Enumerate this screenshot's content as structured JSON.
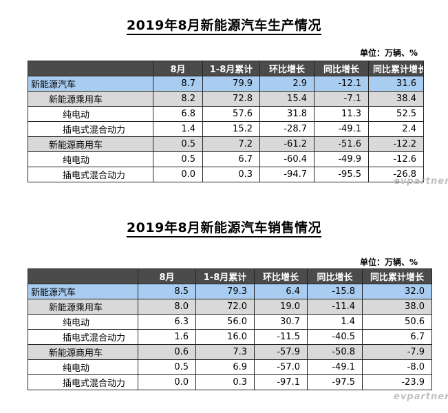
{
  "production": {
    "title": "2019年8月新能源汽车生产情况",
    "unit": "单位：万辆、%",
    "headers": [
      "8月",
      "1-8月累计",
      "环比增长",
      "同比增长",
      "同比累计增长"
    ],
    "rows": [
      {
        "label": "新能源汽车",
        "level": 0,
        "values": [
          "8.7",
          "79.9",
          "2.9",
          "-12.1",
          "31.6"
        ]
      },
      {
        "label": "新能源乘用车",
        "level": 1,
        "values": [
          "8.2",
          "72.8",
          "15.4",
          "-7.1",
          "38.4"
        ]
      },
      {
        "label": "纯电动",
        "level": 2,
        "values": [
          "6.8",
          "57.6",
          "31.8",
          "11.3",
          "52.5"
        ]
      },
      {
        "label": "插电式混合动力",
        "level": 2,
        "values": [
          "1.4",
          "15.2",
          "-28.7",
          "-49.1",
          "2.4"
        ]
      },
      {
        "label": "新能源商用车",
        "level": 1,
        "values": [
          "0.5",
          "7.2",
          "-61.2",
          "-51.6",
          "-12.2"
        ]
      },
      {
        "label": "纯电动",
        "level": 2,
        "values": [
          "0.5",
          "6.7",
          "-60.4",
          "-49.9",
          "-12.6"
        ]
      },
      {
        "label": "插电式混合动力",
        "level": 2,
        "values": [
          "0.0",
          "0.3",
          "-94.7",
          "-95.5",
          "-26.8"
        ]
      }
    ]
  },
  "sales": {
    "title": "2019年8月新能源汽车销售情况",
    "unit": "单位：万辆、%",
    "headers": [
      "8月",
      "1-8月累计",
      "环比增长",
      "同比增长",
      "同比累计增长"
    ],
    "rows": [
      {
        "label": "新能源汽车",
        "level": 0,
        "values": [
          "8.5",
          "79.3",
          "6.4",
          "-15.8",
          "32.0"
        ]
      },
      {
        "label": "新能源乘用车",
        "level": 1,
        "values": [
          "8.0",
          "72.0",
          "19.0",
          "-11.4",
          "38.0"
        ]
      },
      {
        "label": "纯电动",
        "level": 2,
        "values": [
          "6.3",
          "56.0",
          "30.7",
          "1.4",
          "50.6"
        ]
      },
      {
        "label": "插电式混合动力",
        "level": 2,
        "values": [
          "1.6",
          "16.0",
          "-11.5",
          "-40.5",
          "6.7"
        ]
      },
      {
        "label": "新能源商用车",
        "level": 1,
        "values": [
          "0.6",
          "7.3",
          "-57.9",
          "-50.8",
          "-7.9"
        ]
      },
      {
        "label": "纯电动",
        "level": 2,
        "values": [
          "0.5",
          "6.9",
          "-57.0",
          "-49.1",
          "-8.0"
        ]
      },
      {
        "label": "插电式混合动力",
        "level": 2,
        "values": [
          "0.0",
          "0.3",
          "-97.1",
          "-97.5",
          "-23.9"
        ]
      }
    ]
  },
  "watermark": "evpartner"
}
